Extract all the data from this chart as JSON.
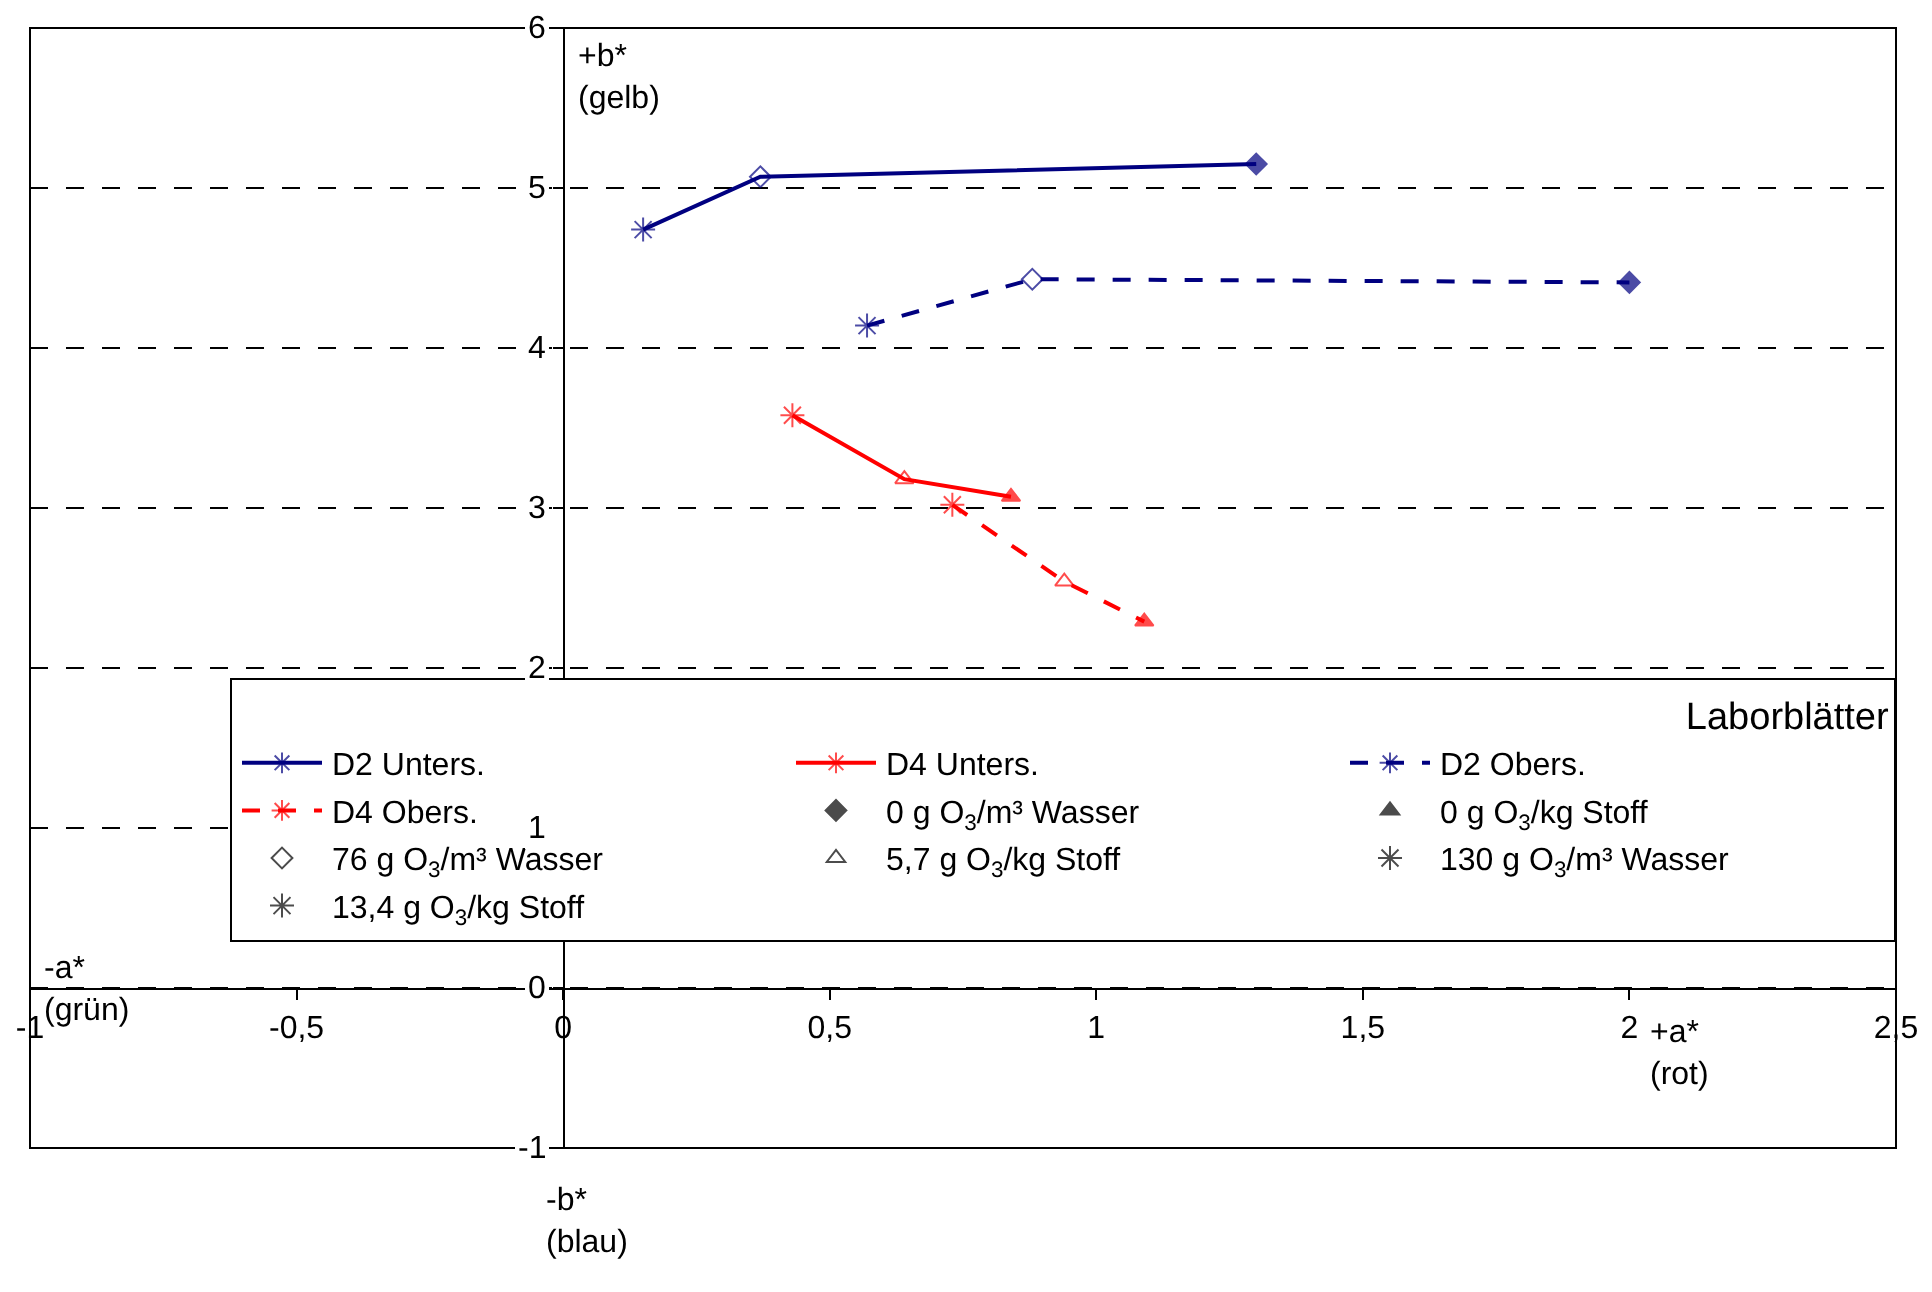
{
  "chart_data": {
    "type": "line",
    "xlim": [
      -1,
      2.5
    ],
    "ylim": [
      -1,
      6
    ],
    "xticks": [
      -1,
      {
        "value": -0.5,
        "label": "-0,5"
      },
      0,
      {
        "value": 0.5,
        "label": "0,5"
      },
      1,
      {
        "value": 1.5,
        "label": "1,5"
      },
      2,
      {
        "value": 2.5,
        "label": "2,5"
      }
    ],
    "yticks": [
      -1,
      0,
      1,
      2,
      3,
      4,
      5,
      6
    ],
    "grid": "y",
    "legend": "bottom right",
    "legend_title": "Laborblätter",
    "annotations": [
      "+b*\n(gelb)",
      "-a*\n(grün)",
      "+a*\n(rot)",
      "-b*\n(blau)"
    ],
    "series": [
      {
        "name": "D2 Unters.",
        "color": "#000080",
        "line_style": "solid",
        "x": [
          0.15,
          0.37,
          1.3
        ],
        "values": [
          4.74,
          5.07,
          5.15
        ],
        "marker": [
          "asterisk",
          "diamond-open",
          "diamond"
        ]
      },
      {
        "name": "D4 Unters.",
        "color": "#ff0000",
        "line_style": "solid",
        "x": [
          0.43,
          0.64,
          0.84
        ],
        "values": [
          3.58,
          3.18,
          3.07
        ],
        "marker": [
          "asterisk",
          "triangle-open",
          "triangle"
        ]
      },
      {
        "name": "D2 Obers.",
        "color": "#000080",
        "line_style": "dashed",
        "x": [
          0.57,
          0.88,
          2.0
        ],
        "values": [
          4.14,
          4.43,
          4.41
        ],
        "marker": [
          "asterisk",
          "diamond-open",
          "diamond"
        ]
      },
      {
        "name": "D4 Obers.",
        "color": "#ff0000",
        "line_style": "dashed",
        "x": [
          0.73,
          0.94,
          1.09
        ],
        "values": [
          3.02,
          2.54,
          2.29
        ],
        "marker": [
          "asterisk",
          "triangle-open",
          "triangle"
        ]
      },
      {
        "type": "scatter",
        "name": "0 g O$_{3}$/m³ Wasser",
        "color": "#000000",
        "x": [
          null
        ],
        "values": [
          null
        ],
        "marker": [
          "diamond"
        ]
      },
      {
        "type": "scatter",
        "name": "0 g O$_{3}$/kg Stoff",
        "color": "#000000",
        "x": [
          null
        ],
        "values": [
          null
        ],
        "marker": [
          "triangle"
        ]
      },
      {
        "type": "scatter",
        "name": "76 g O$_{3}$/m³ Wasser",
        "color": "#000000",
        "x": [
          null
        ],
        "values": [
          null
        ],
        "marker": [
          "diamond-open"
        ]
      },
      {
        "type": "scatter",
        "name": "5,7 g O$_{3}$/kg Stoff",
        "color": "#000000",
        "x": [
          null
        ],
        "values": [
          null
        ],
        "marker": [
          "triangle-open"
        ]
      },
      {
        "type": "scatter",
        "name": "130 g O$_{3}$/m³ Wasser",
        "color": "#000000",
        "x": [
          null
        ],
        "values": [
          null
        ],
        "marker": [
          "asterisk"
        ]
      },
      {
        "type": "scatter",
        "name": "13,4 g O$_{3}$/kg Stoff",
        "color": "#000000",
        "x": [
          null
        ],
        "values": [
          null
        ],
        "marker": [
          "asterisk"
        ]
      }
    ]
  }
}
